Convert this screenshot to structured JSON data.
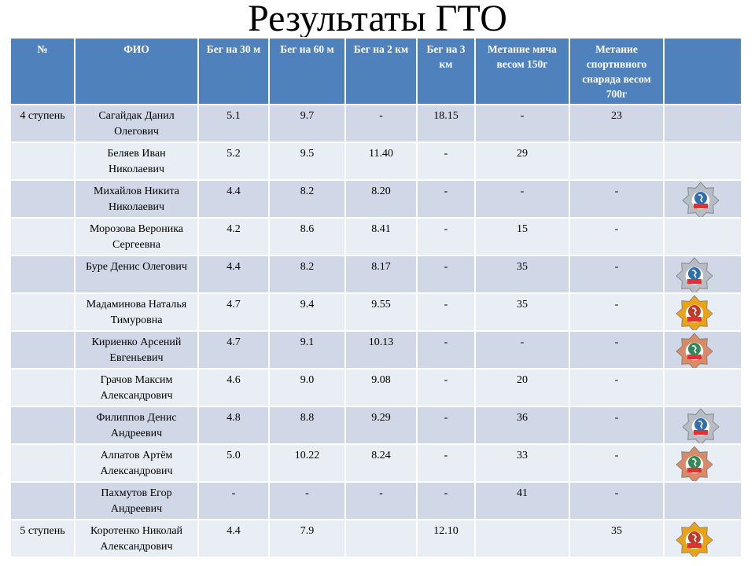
{
  "title": "Результаты ГТО",
  "headers": [
    "№",
    "ФИО",
    "Бег на 30 м",
    "Бег на 60 м",
    "Бег на 2 км",
    "Бег на 3 км",
    "Метание мяча весом 150г",
    "Метание спортивного снаряда весом 700г",
    ""
  ],
  "rows": [
    {
      "stage": "4 ступень",
      "name": "Сагайдак Данил Олегович",
      "r30": "5.1",
      "r60": "9.7",
      "r2km": "-",
      "r3km": "18.15",
      "ball": "-",
      "projectile": "23",
      "medal": "none"
    },
    {
      "stage": "",
      "name": "Беляев Иван Николаевич",
      "r30": "5.2",
      "r60": "9.5",
      "r2km": "11.40",
      "r3km": "-",
      "ball": "29",
      "projectile": "",
      "medal": "none"
    },
    {
      "stage": "",
      "name": "Михайлов Никита Николаевич",
      "r30": "4.4",
      "r60": "8.2",
      "r2km": "8.20",
      "r3km": "-",
      "ball": "-",
      "projectile": "-",
      "medal": "silver"
    },
    {
      "stage": "",
      "name": "Морозова Вероника Сергеевна",
      "r30": "4.2",
      "r60": "8.6",
      "r2km": "8.41",
      "r3km": "-",
      "ball": "15",
      "projectile": "-",
      "medal": "none"
    },
    {
      "stage": "",
      "name": "Буре Денис Олегович",
      "r30": "4.4",
      "r60": "8.2",
      "r2km": "8.17",
      "r3km": "-",
      "ball": "35",
      "projectile": "-",
      "medal": "silver"
    },
    {
      "stage": "",
      "name": "Мадаминова Наталья Тимуровна",
      "r30": "4.7",
      "r60": "9.4",
      "r2km": "9.55",
      "r3km": "-",
      "ball": "35",
      "projectile": "-",
      "medal": "gold"
    },
    {
      "stage": "",
      "name": "Кириенко Арсений Евгеньевич",
      "r30": "4.7",
      "r60": "9.1",
      "r2km": "10.13",
      "r3km": "-",
      "ball": "-",
      "projectile": "-",
      "medal": "bronze"
    },
    {
      "stage": "",
      "name": "Грачов Максим Александрович",
      "r30": "4.6",
      "r60": "9.0",
      "r2km": "9.08",
      "r3km": "-",
      "ball": "20",
      "projectile": "-",
      "medal": "none"
    },
    {
      "stage": "",
      "name": "Филиппов Денис Андреевич",
      "r30": "4.8",
      "r60": "8.8",
      "r2km": "9.29",
      "r3km": "-",
      "ball": "36",
      "projectile": "-",
      "medal": "silver"
    },
    {
      "stage": "",
      "name": "Алпатов Артём Александрович",
      "r30": "5.0",
      "r60": "10.22",
      "r2km": "8.24",
      "r3km": "-",
      "ball": "33",
      "projectile": "-",
      "medal": "bronze"
    },
    {
      "stage": "",
      "name": "Пахмутов Егор Андреевич",
      "r30": "-",
      "r60": "-",
      "r2km": "-",
      "r3km": "-",
      "ball": "41",
      "projectile": "-",
      "medal": "none"
    },
    {
      "stage": "5 ступень",
      "name": "Коротенко Николай Александрович",
      "r30": "4.4",
      "r60": "7.9",
      "r2km": "",
      "r3km": "12.10",
      "ball": "",
      "projectile": "35",
      "medal": "gold"
    }
  ],
  "medal_colors": {
    "gold": "#e8a317",
    "silver": "#b8bcc4",
    "bronze": "#d98a66"
  },
  "medal_icon": "gto-badge-icon",
  "header_color": "#4f81bd",
  "row_color_odd": "#d0d8e8",
  "row_color_even": "#e9edf4"
}
